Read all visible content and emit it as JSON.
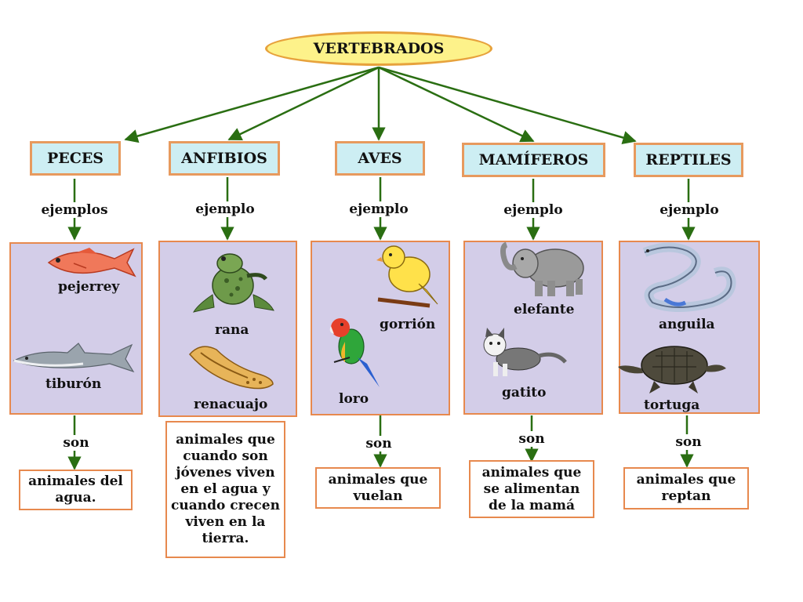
{
  "root": "VERTEBRADOS",
  "categories": [
    {
      "name": "PECES",
      "link": "ejemplos",
      "animals": [
        "pejerrey",
        "tiburón"
      ],
      "link2": "son",
      "desc": "animales del agua."
    },
    {
      "name": "ANFIBIOS",
      "link": "ejemplo",
      "animals": [
        "rana",
        "renacuajo"
      ],
      "link2": "son",
      "desc": "animales que cuando son jóvenes viven en el agua y cuando crecen viven en la tierra."
    },
    {
      "name": "AVES",
      "link": "ejemplo",
      "animals": [
        "gorrión",
        "loro"
      ],
      "link2": "son",
      "desc": "animales que vuelan"
    },
    {
      "name": "MAMÍFEROS",
      "link": "ejemplo",
      "animals": [
        "elefante",
        "gatito"
      ],
      "link2": "son",
      "desc": "animales que se alimentan de la mamá"
    },
    {
      "name": "REPTILES",
      "link": "ejemplo",
      "animals": [
        "anguila",
        "tortuga"
      ],
      "link2": "son",
      "desc": "animales que reptan"
    }
  ],
  "colors": {
    "arrow": "#2a6e12",
    "category_fill": "#cdeef3",
    "panel_fill": "#d3cde8",
    "border": "#e7894e",
    "root_fill": "#fdf28a"
  }
}
